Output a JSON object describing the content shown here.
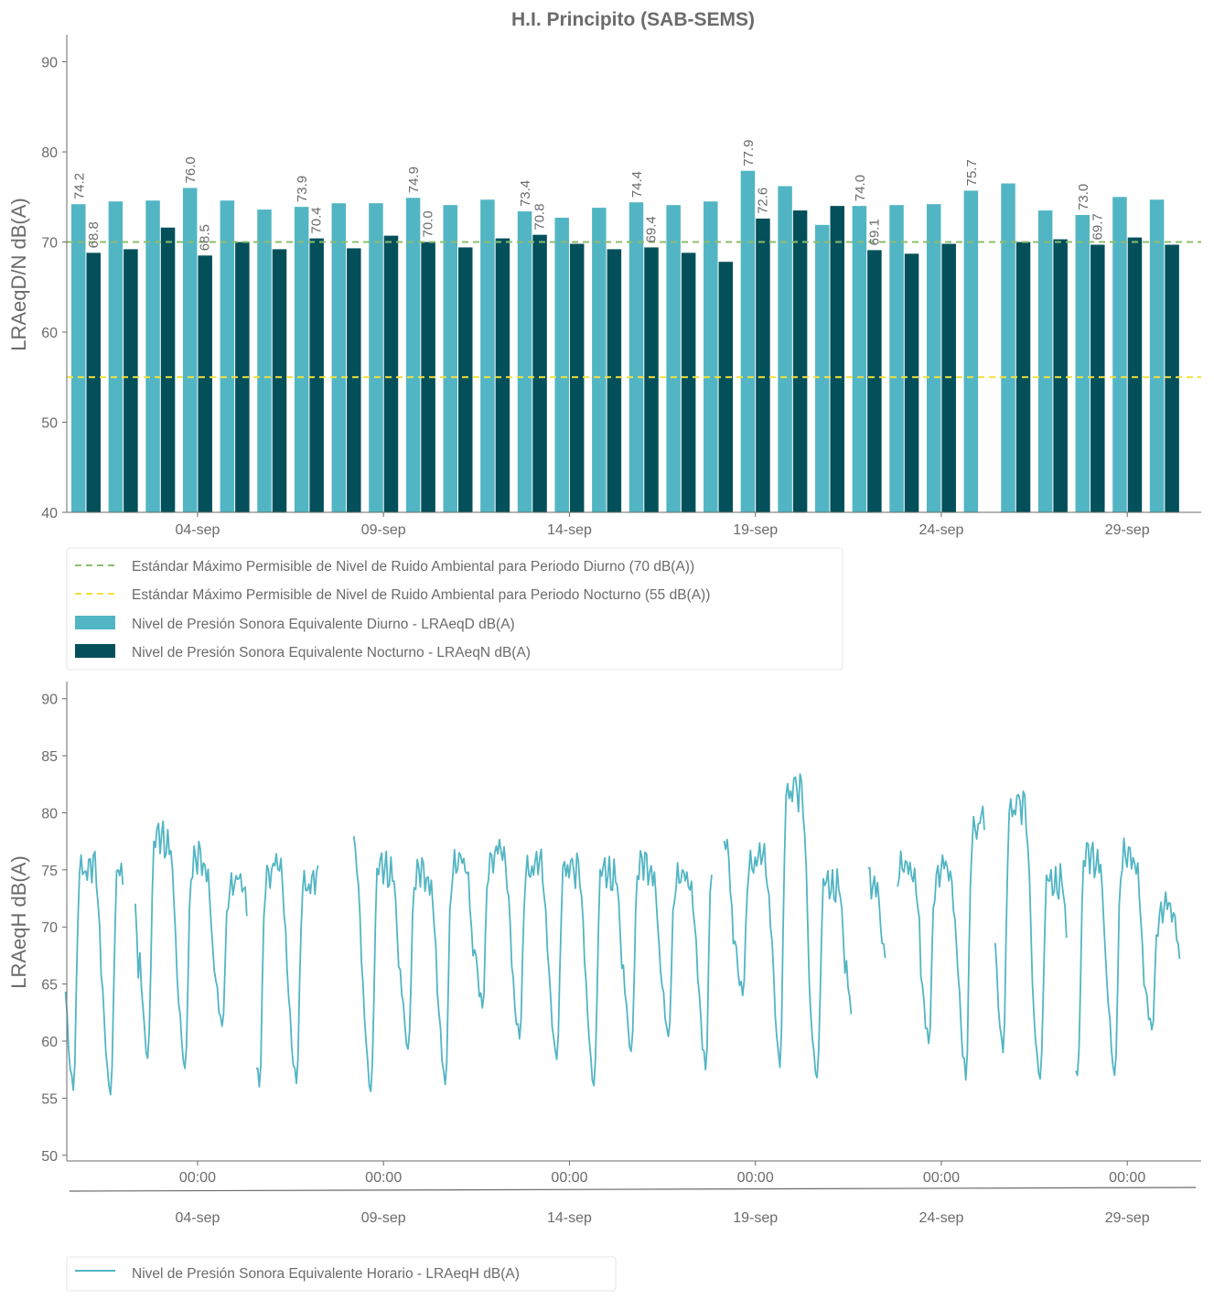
{
  "title": "H.I. Principito (SAB-SEMS)",
  "colors": {
    "day": "#52b5c4",
    "night": "#03505a",
    "green_line": "#8dbd6b",
    "yellow_line": "#f2e13c",
    "hourly": "#52b5c4",
    "axis": "#6b6b6b"
  },
  "chart_data": [
    {
      "type": "bar",
      "ylabel": "LRAeqD/N dB(A)",
      "ylim": [
        40,
        93
      ],
      "yticks": [
        "40",
        "50",
        "60",
        "70",
        "80",
        "90"
      ],
      "x_tick_labels": [
        "04-sep",
        "09-sep",
        "14-sep",
        "19-sep",
        "24-sep",
        "29-sep"
      ],
      "x_tick_days": [
        4,
        9,
        14,
        19,
        24,
        29
      ],
      "days": [
        1,
        2,
        3,
        4,
        5,
        6,
        7,
        8,
        9,
        10,
        11,
        12,
        13,
        14,
        15,
        16,
        17,
        18,
        19,
        20,
        21,
        22,
        23,
        24,
        25,
        26,
        27,
        28,
        29,
        30
      ],
      "series": [
        {
          "name": "Nivel de Presión Sonora Equivalente Diurno - LRAeqD dB(A)",
          "values": [
            74.2,
            74.5,
            74.6,
            76.0,
            74.6,
            73.6,
            73.9,
            74.3,
            74.3,
            74.9,
            74.1,
            74.7,
            73.4,
            72.7,
            73.8,
            74.4,
            74.1,
            74.5,
            77.9,
            76.2,
            71.9,
            74.0,
            74.1,
            74.2,
            75.7,
            76.5,
            73.5,
            73.0,
            75.0,
            74.7
          ]
        },
        {
          "name": "Nivel de Presión Sonora Equivalente Nocturno - LRAeqN dB(A)",
          "values": [
            68.8,
            69.2,
            71.6,
            68.5,
            70.0,
            69.2,
            70.4,
            69.3,
            70.7,
            70.0,
            69.4,
            70.4,
            70.8,
            69.8,
            69.2,
            69.4,
            68.8,
            67.8,
            72.6,
            73.5,
            74.0,
            69.1,
            68.7,
            69.8,
            null,
            70.0,
            70.3,
            69.7,
            70.5,
            69.7
          ]
        }
      ],
      "data_labels": [
        {
          "day": 1,
          "series": 0,
          "text": "74.2"
        },
        {
          "day": 1,
          "series": 1,
          "text": "68.8"
        },
        {
          "day": 4,
          "series": 0,
          "text": "76.0"
        },
        {
          "day": 4,
          "series": 1,
          "text": "68.5"
        },
        {
          "day": 7,
          "series": 0,
          "text": "73.9"
        },
        {
          "day": 7,
          "series": 1,
          "text": "70.4"
        },
        {
          "day": 10,
          "series": 0,
          "text": "74.9"
        },
        {
          "day": 10,
          "series": 1,
          "text": "70.0"
        },
        {
          "day": 13,
          "series": 0,
          "text": "73.4"
        },
        {
          "day": 13,
          "series": 1,
          "text": "70.8"
        },
        {
          "day": 16,
          "series": 0,
          "text": "74.4"
        },
        {
          "day": 16,
          "series": 1,
          "text": "69.4"
        },
        {
          "day": 19,
          "series": 0,
          "text": "77.9"
        },
        {
          "day": 19,
          "series": 1,
          "text": "72.6"
        },
        {
          "day": 22,
          "series": 0,
          "text": "74.0"
        },
        {
          "day": 22,
          "series": 1,
          "text": "69.1"
        },
        {
          "day": 25,
          "series": 0,
          "text": "75.7"
        },
        {
          "day": 28,
          "series": 0,
          "text": "73.0"
        },
        {
          "day": 28,
          "series": 1,
          "text": "69.7"
        }
      ],
      "reference_lines": [
        {
          "name": "Estándar Máximo Permisible de Nivel de Ruido Ambiental para Periodo Diurno (70 dB(A))",
          "y": 70
        },
        {
          "name": "Estándar Máximo Permisible de Nivel de Ruido Ambiental para Periodo Nocturno (55 dB(A))",
          "y": 55
        }
      ],
      "legend_position": "below"
    },
    {
      "type": "line",
      "ylabel": "LRAeqH dB(A)",
      "ylim": [
        49.5,
        91.5
      ],
      "yticks": [
        "50",
        "55",
        "60",
        "65",
        "70",
        "75",
        "80",
        "85",
        "90"
      ],
      "x_hour_tick_label": "00:00",
      "x_tick_labels": [
        "04-sep",
        "09-sep",
        "14-sep",
        "19-sep",
        "24-sep",
        "29-sep"
      ],
      "x_tick_days": [
        4,
        9,
        14,
        19,
        24,
        29
      ],
      "series": [
        {
          "name": "Nivel de Presión Sonora Equivalente Horario - LRAeqH dB(A)",
          "hourly_profile": [
            64,
            62,
            60,
            58,
            57,
            56,
            58,
            64,
            70,
            73,
            74,
            74.5,
            74,
            73.5,
            74.5,
            75,
            74,
            73.5,
            74.5,
            74,
            73,
            71,
            69,
            66
          ],
          "daily_min": [
            55.7,
            55.3,
            58.5,
            57.6,
            61.3,
            56.0,
            56.3,
            56.5,
            55.6,
            59.3,
            56.2,
            62.9,
            60.2,
            58.4,
            56.1,
            59.1,
            60.4,
            57.5,
            64.0,
            57.7,
            56.8,
            60.4,
            63.6,
            59.8,
            56.6,
            59.0,
            56.7,
            57.0,
            57.0,
            61.0
          ],
          "daily_max": [
            76.2,
            75.5,
            78.6,
            76.5,
            74.5,
            76.0,
            74.8,
            77.4,
            76.0,
            75.2,
            76.5,
            77.0,
            76.1,
            75.8,
            75.6,
            76.0,
            75.0,
            78.3,
            76.5,
            83.0,
            74.5,
            74.8,
            75.8,
            75.6,
            80.2,
            81.5,
            74.8,
            77.0,
            77.0,
            72.0
          ],
          "gaps": [
            [
              2.0,
              2.3
            ],
            [
              5.35,
              5.55
            ],
            [
              7.25,
              8.2
            ],
            [
              17.85,
              18.15
            ],
            [
              21.6,
              22.0
            ],
            [
              22.5,
              22.8
            ],
            [
              25.2,
              25.45
            ],
            [
              27.4,
              27.6
            ]
          ]
        }
      ],
      "legend_position": "below"
    }
  ]
}
